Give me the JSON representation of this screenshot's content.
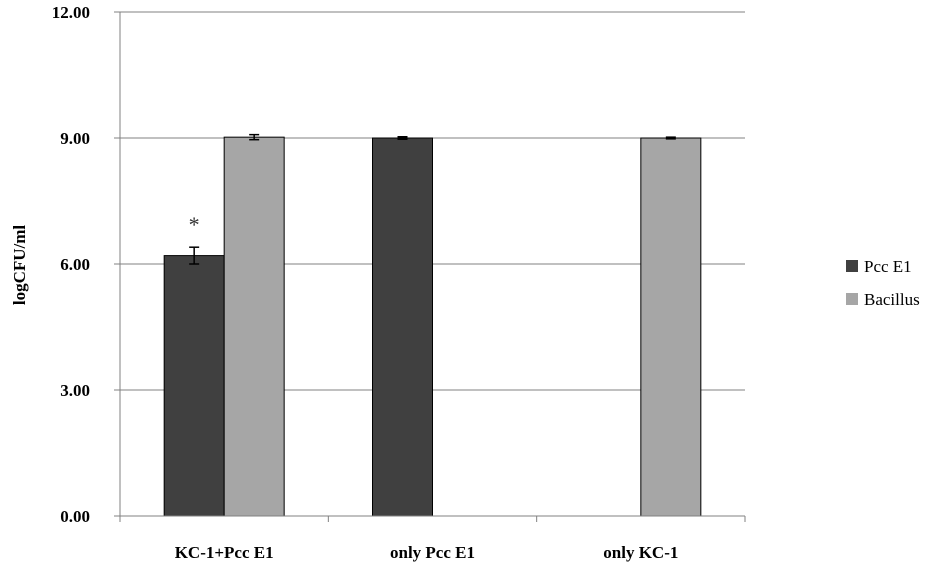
{
  "chart_data": {
    "type": "bar",
    "title": "",
    "xlabel": "",
    "ylabel": "logCFU/ml",
    "ylim": [
      0,
      12
    ],
    "yticks": [
      "0.00",
      "3.00",
      "6.00",
      "9.00",
      "12.00"
    ],
    "grid": "horizontal",
    "legend_position": "right",
    "categories": [
      "KC-1+Pcc E1",
      "only Pcc E1",
      "only KC-1"
    ],
    "series": [
      {
        "name": "Pcc E1",
        "color": "#404040",
        "values": [
          6.2,
          9.0,
          null
        ],
        "errors": [
          0.2,
          0.03,
          null
        ]
      },
      {
        "name": "Bacillus",
        "color": "#a6a6a6",
        "values": [
          9.02,
          null,
          9.0
        ],
        "errors": [
          0.06,
          null,
          0.02
        ]
      }
    ],
    "annotations": [
      {
        "text": "*",
        "category": "KC-1+Pcc E1",
        "series": "Pcc E1"
      }
    ]
  }
}
